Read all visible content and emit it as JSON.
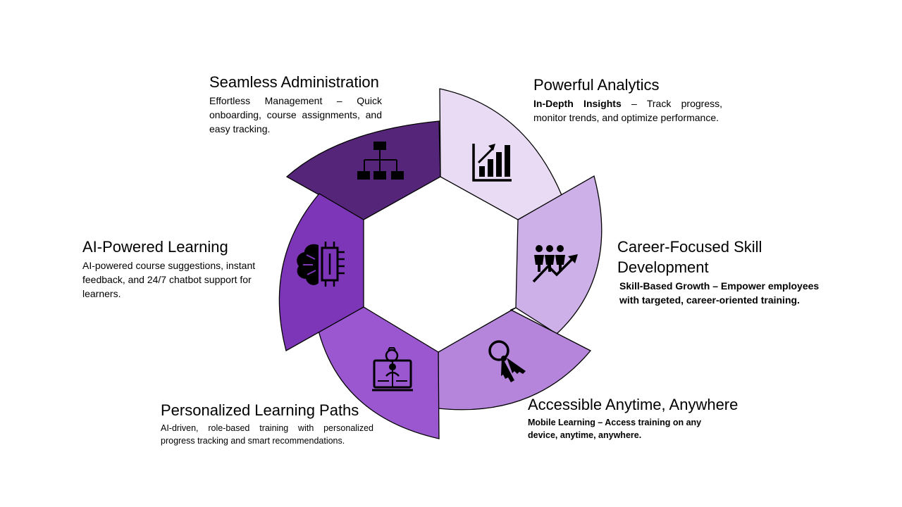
{
  "colors": {
    "admin": "#552579",
    "analytics": "#e9dbf4",
    "career": "#cdb0e7",
    "access": "#b585db",
    "paths": "#9a57d0",
    "ai": "#7d36b8",
    "outline": "#000000"
  },
  "segments": [
    {
      "id": "admin",
      "title": "Seamless Administration",
      "body": "Effortless Management – Quick onboarding, course assignments, and easy tracking.",
      "icon": "org-chart-icon"
    },
    {
      "id": "analytics",
      "title": "Powerful Analytics",
      "body_bold": "In-Depth Insights",
      "body_rest": " – Track progress, monitor trends, and optimize performance.",
      "icon": "growth-chart-icon"
    },
    {
      "id": "career",
      "title": "Career-Focused Skill Development",
      "body": "Skill-Based Growth – Empower employees with targeted, career-oriented training.",
      "icon": "team-growth-icon"
    },
    {
      "id": "access",
      "title": "Accessible Anytime, Anywhere",
      "body": "Mobile Learning – Access training on any device, anytime, anywhere.",
      "icon": "keys-icon"
    },
    {
      "id": "paths",
      "title": "Personalized Learning Paths",
      "body": "AI-driven, role-based training with personalized progress tracking and smart recommendations.",
      "icon": "learner-book-icon"
    },
    {
      "id": "ai",
      "title": "AI-Powered Learning",
      "body": "AI-powered course suggestions, instant feedback, and 24/7 chatbot support for learners.",
      "icon": "ai-brain-chip-icon"
    }
  ]
}
